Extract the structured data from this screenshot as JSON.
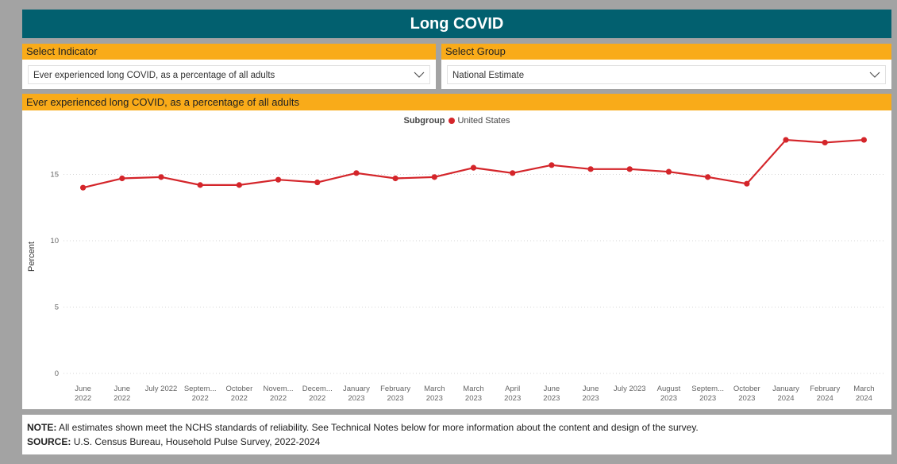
{
  "header": {
    "title": "Long COVID"
  },
  "indicator_select": {
    "label": "Select Indicator",
    "value": "Ever experienced long COVID, as a percentage of all adults"
  },
  "group_select": {
    "label": "Select Group",
    "value": "National Estimate"
  },
  "chart_title": "Ever experienced long COVID, as a percentage of all adults",
  "legend": {
    "title": "Subgroup",
    "items": [
      "United States"
    ]
  },
  "notes": {
    "note_label": "NOTE:",
    "note_text": "All estimates shown meet the NCHS standards of reliability. See Technical Notes below for more information about the content and design of the survey.",
    "source_label": "SOURCE:",
    "source_text": "U.S. Census Bureau, Household Pulse Survey, 2022-2024"
  },
  "colors": {
    "header_bg": "#02606f",
    "accent": "#f9ab19",
    "series": "#d4252a",
    "background": "#a3a3a3"
  },
  "chart_data": {
    "type": "line",
    "title": "Ever experienced long COVID, as a percentage of all adults",
    "xlabel": "",
    "ylabel": "Percent",
    "ylim": [
      0,
      18
    ],
    "yticks": [
      0,
      5,
      10,
      15
    ],
    "grid": true,
    "legend_position": "top-center",
    "categories": [
      [
        "June",
        "2022"
      ],
      [
        "June",
        "2022"
      ],
      [
        "July 2022"
      ],
      [
        "Septem...",
        "2022"
      ],
      [
        "October",
        "2022"
      ],
      [
        "Novem...",
        "2022"
      ],
      [
        "Decem...",
        "2022"
      ],
      [
        "January",
        "2023"
      ],
      [
        "February",
        "2023"
      ],
      [
        "March",
        "2023"
      ],
      [
        "March",
        "2023"
      ],
      [
        "April",
        "2023"
      ],
      [
        "June",
        "2023"
      ],
      [
        "June",
        "2023"
      ],
      [
        "July 2023"
      ],
      [
        "August",
        "2023"
      ],
      [
        "Septem...",
        "2023"
      ],
      [
        "October",
        "2023"
      ],
      [
        "January",
        "2024"
      ],
      [
        "February",
        "2024"
      ],
      [
        "March",
        "2024"
      ]
    ],
    "series": [
      {
        "name": "United States",
        "values": [
          14.0,
          14.7,
          14.8,
          14.2,
          14.2,
          14.6,
          14.4,
          15.1,
          14.7,
          14.8,
          15.5,
          15.1,
          15.7,
          15.4,
          15.4,
          15.2,
          14.8,
          14.3,
          17.6,
          17.4,
          17.6
        ]
      }
    ]
  }
}
